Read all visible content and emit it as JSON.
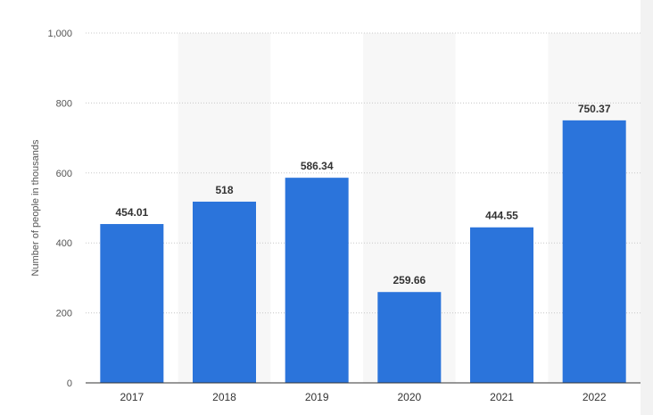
{
  "chart_data": {
    "type": "bar",
    "categories": [
      "2017",
      "2018",
      "2019",
      "2020",
      "2021",
      "2022"
    ],
    "values": [
      454.01,
      518,
      586.34,
      259.66,
      444.55,
      750.37
    ],
    "value_labels": [
      "454.01",
      "518",
      "586.34",
      "259.66",
      "444.55",
      "750.37"
    ],
    "title": "",
    "xlabel": "",
    "ylabel": "Number of people in thousands",
    "ylim": [
      0,
      1000
    ],
    "yticks": [
      0,
      200,
      400,
      600,
      800,
      1000
    ],
    "ytick_labels": [
      "0",
      "200",
      "400",
      "600",
      "800",
      "1,000"
    ],
    "grid": true,
    "grid_style": "dotted",
    "alternating_band_shading": true,
    "legend": "none",
    "colors": {
      "bar": "#2b74db",
      "band": "#f7f7f7",
      "grid": "#c8c8c8",
      "axis": "#333333"
    }
  }
}
